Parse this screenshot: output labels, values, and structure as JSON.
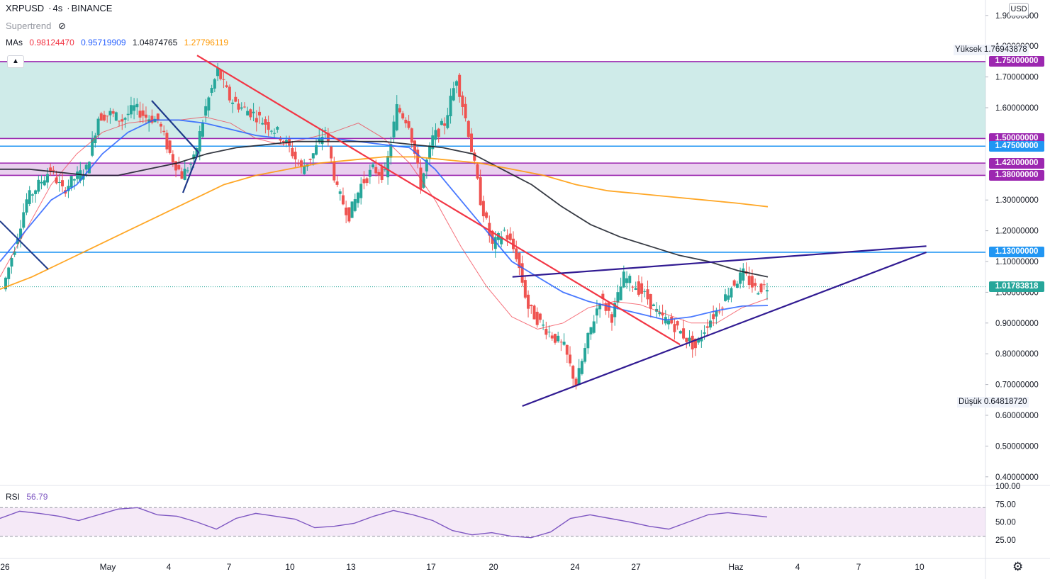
{
  "header": {
    "symbol": "XRPUSD",
    "timeframe": "4s",
    "exchange": "BINANCE",
    "indicator_name": "Supertrend",
    "ma_label": "MAs",
    "ma_values": [
      "0.98124470",
      "0.95719909",
      "1.04874765",
      "1.27796119"
    ],
    "ma_colors": [
      "#f23645",
      "#2962ff",
      "#131722",
      "#ff9800"
    ],
    "currency_button": "USD",
    "collapse_icon": "chevron-up-icon"
  },
  "price_boxes": [
    {
      "label": "1.75000000",
      "value": 1.75,
      "color": "#9c27b0"
    },
    {
      "label": "1.50000000",
      "value": 1.5,
      "color": "#9c27b0"
    },
    {
      "label": "1.47500000",
      "value": 1.475,
      "color": "#2196f3"
    },
    {
      "label": "1.42000000",
      "value": 1.42,
      "color": "#9c27b0"
    },
    {
      "label": "1.38000000",
      "value": 1.38,
      "color": "#9c27b0"
    },
    {
      "label": "1.13000000",
      "value": 1.13,
      "color": "#2196f3"
    },
    {
      "label": "1.01783818",
      "value": 1.01783818,
      "color": "#26a69a"
    }
  ],
  "high": {
    "label": "Yüksek",
    "value": "1.76943878"
  },
  "low": {
    "label": "Düşük",
    "value": "0.64818720"
  },
  "rsi": {
    "label": "RSI",
    "value": "56.79",
    "ticks": [
      "100.00",
      "75.00",
      "50.00",
      "25.00"
    ]
  },
  "footer": {
    "settings_icon": "gear-icon"
  },
  "chart_data": {
    "type": "candlestick",
    "symbol": "XRPUSD",
    "timeframe": "4s",
    "y_axis": {
      "ticks": [
        "1.90000000",
        "1.80000000",
        "1.70000000",
        "1.60000000",
        "1.30000000",
        "1.20000000",
        "1.10000000",
        "1.00000000",
        "0.90000000",
        "0.80000000",
        "0.70000000",
        "0.60000000",
        "0.50000000",
        "0.40000000"
      ],
      "ylim": [
        0.38,
        1.92
      ]
    },
    "x_axis": {
      "ticks": [
        "26",
        "May",
        "4",
        "7",
        "10",
        "13",
        "17",
        "20",
        "24",
        "27",
        "Haz",
        "4",
        "7",
        "10"
      ]
    },
    "candles_close_path": [
      1.01,
      1.15,
      1.3,
      1.35,
      1.4,
      1.33,
      1.37,
      1.4,
      1.57,
      1.58,
      1.56,
      1.6,
      1.57,
      1.56,
      1.45,
      1.38,
      1.43,
      1.6,
      1.72,
      1.63,
      1.6,
      1.58,
      1.55,
      1.52,
      1.47,
      1.4,
      1.45,
      1.53,
      1.33,
      1.25,
      1.35,
      1.4,
      1.38,
      1.6,
      1.55,
      1.35,
      1.5,
      1.55,
      1.7,
      1.52,
      1.3,
      1.15,
      1.2,
      1.12,
      0.95,
      0.9,
      0.86,
      0.82,
      0.7,
      0.85,
      0.98,
      0.92,
      1.05,
      1.02,
      0.98,
      0.92,
      0.9,
      0.86,
      0.82,
      0.9,
      0.95,
      1.02,
      1.06,
      1.01,
      1.02
    ],
    "series": [
      {
        "name": "MA 0.98124470",
        "color": "#f23645",
        "values": [
          1.05,
          1.2,
          1.35,
          1.45,
          1.52,
          1.55,
          1.56,
          1.56,
          1.57,
          1.55,
          1.5,
          1.48,
          1.5,
          1.52,
          1.55,
          1.5,
          1.42,
          1.3,
          1.15,
          1.02,
          0.92,
          0.88,
          0.9,
          0.95,
          0.97,
          0.96,
          0.93,
          0.9,
          0.9,
          0.95,
          0.98
        ]
      },
      {
        "name": "MA 0.95719909",
        "color": "#2962ff",
        "values": [
          1.1,
          1.2,
          1.3,
          1.35,
          1.45,
          1.52,
          1.56,
          1.56,
          1.55,
          1.53,
          1.51,
          1.5,
          1.5,
          1.5,
          1.49,
          1.48,
          1.47,
          1.4,
          1.3,
          1.2,
          1.1,
          1.05,
          1.0,
          0.97,
          0.95,
          0.93,
          0.91,
          0.92,
          0.94,
          0.955,
          0.957
        ]
      },
      {
        "name": "MA 1.04874765",
        "color": "#131722",
        "values": [
          1.4,
          1.4,
          1.39,
          1.38,
          1.38,
          1.4,
          1.42,
          1.45,
          1.47,
          1.48,
          1.49,
          1.49,
          1.49,
          1.49,
          1.48,
          1.47,
          1.45,
          1.4,
          1.35,
          1.28,
          1.22,
          1.18,
          1.15,
          1.12,
          1.1,
          1.07,
          1.05
        ]
      },
      {
        "name": "MA 1.27796119",
        "color": "#ff9800",
        "values": [
          1.01,
          1.05,
          1.1,
          1.15,
          1.2,
          1.25,
          1.3,
          1.35,
          1.38,
          1.4,
          1.42,
          1.43,
          1.44,
          1.44,
          1.43,
          1.42,
          1.4,
          1.38,
          1.35,
          1.33,
          1.32,
          1.31,
          1.3,
          1.29,
          1.278
        ]
      }
    ],
    "horizontal_levels": [
      1.75,
      1.5,
      1.475,
      1.42,
      1.38,
      1.13,
      1.01783818
    ],
    "zones": [
      {
        "from": 1.5,
        "to": 1.75,
        "color": "#26a69a"
      },
      {
        "from": 1.38,
        "to": 1.42,
        "color": "#9c27b0"
      }
    ],
    "trendlines": [
      {
        "name": "descending resistance",
        "color": "#f23645",
        "from": [
          0.2,
          1.77
        ],
        "to": [
          0.69,
          0.83
        ]
      },
      {
        "name": "triangle upper",
        "color": "#311b92",
        "from": [
          0.52,
          1.05
        ],
        "to": [
          0.94,
          1.15
        ]
      },
      {
        "name": "triangle lower",
        "color": "#311b92",
        "from": [
          0.53,
          0.63
        ],
        "to": [
          0.94,
          1.13
        ]
      }
    ],
    "rsi_values": [
      55,
      65,
      62,
      58,
      52,
      60,
      68,
      70,
      60,
      58,
      50,
      40,
      55,
      62,
      58,
      54,
      42,
      44,
      48,
      58,
      66,
      60,
      52,
      38,
      32,
      35,
      30,
      28,
      36,
      55,
      60,
      55,
      50,
      44,
      40,
      50,
      60,
      63,
      60,
      57
    ],
    "rsi_range": [
      0,
      100
    ],
    "rsi_band": [
      30,
      70
    ]
  }
}
